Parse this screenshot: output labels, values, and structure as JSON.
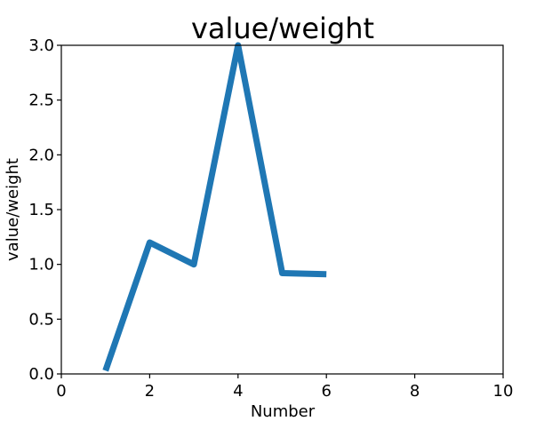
{
  "chart_data": {
    "type": "line",
    "title": "value/weight",
    "xlabel": "Number",
    "ylabel": "value/weight",
    "xlim": [
      0,
      10
    ],
    "ylim": [
      0,
      3.0
    ],
    "x_ticks": [
      "0",
      "2",
      "4",
      "6",
      "8",
      "10"
    ],
    "y_ticks": [
      "0.0",
      "0.5",
      "1.0",
      "1.5",
      "2.0",
      "2.5",
      "3.0"
    ],
    "grid": false,
    "series": [
      {
        "color": "#1f77b4",
        "x": [
          1,
          2,
          3,
          4,
          5,
          6
        ],
        "y": [
          0.03,
          1.2,
          1.0,
          3.0,
          0.92,
          0.91
        ]
      }
    ]
  }
}
